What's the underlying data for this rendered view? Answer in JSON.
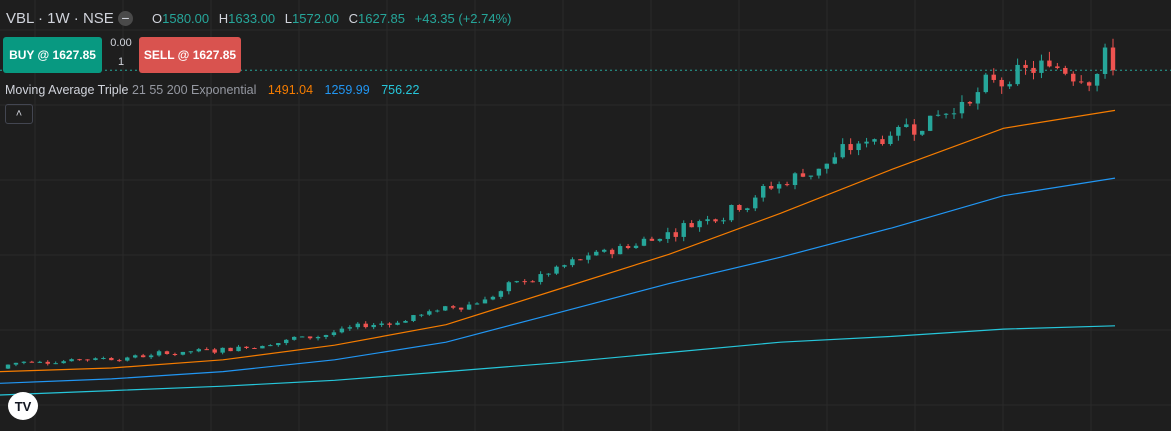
{
  "header": {
    "symbol": "VBL · 1W · NSE",
    "minus_icon": "−",
    "ohlc": {
      "open_label": "O",
      "open": "1580.00",
      "high_label": "H",
      "high": "1633.00",
      "low_label": "L",
      "low": "1572.00",
      "close_label": "C",
      "close": "1627.85",
      "change": "+43.35 (+2.74%)"
    }
  },
  "trade": {
    "buy_label": "BUY @ 1627.85",
    "sell_label": "SELL @ 1627.85",
    "spread": "0.00",
    "quantity": "1"
  },
  "indicator": {
    "name": "Moving Average Triple",
    "params": "21 55 200 Exponential",
    "ma1": "1491.04",
    "ma2": "1259.99",
    "ma3": "756.22",
    "collapse_icon": "chevron-up-icon"
  },
  "logo": {
    "text": "TV",
    "icon": "tradingview-logo"
  },
  "colors": {
    "up": "#26a69a",
    "down": "#ef5350",
    "ma1": "#f57c00",
    "ma2": "#2196f3",
    "ma3": "#26c6da",
    "buy_bg": "#089981",
    "sell_bg": "#d9534f"
  },
  "chart_data": {
    "type": "line",
    "price_range": [
      520,
      1680
    ],
    "last_close": 1627.85,
    "series": [
      {
        "name": "21",
        "values": [
          600,
          612,
          640,
          690,
          760,
          880,
          1000,
          1140,
          1290,
          1430,
          1491.04
        ]
      },
      {
        "name": "55",
        "values": [
          560,
          575,
          600,
          640,
          700,
          800,
          900,
          990,
          1090,
          1200,
          1259.99
        ]
      },
      {
        "name": "200",
        "values": [
          520,
          535,
          550,
          570,
          600,
          630,
          665,
          700,
          720,
          745,
          756.22
        ]
      }
    ]
  }
}
